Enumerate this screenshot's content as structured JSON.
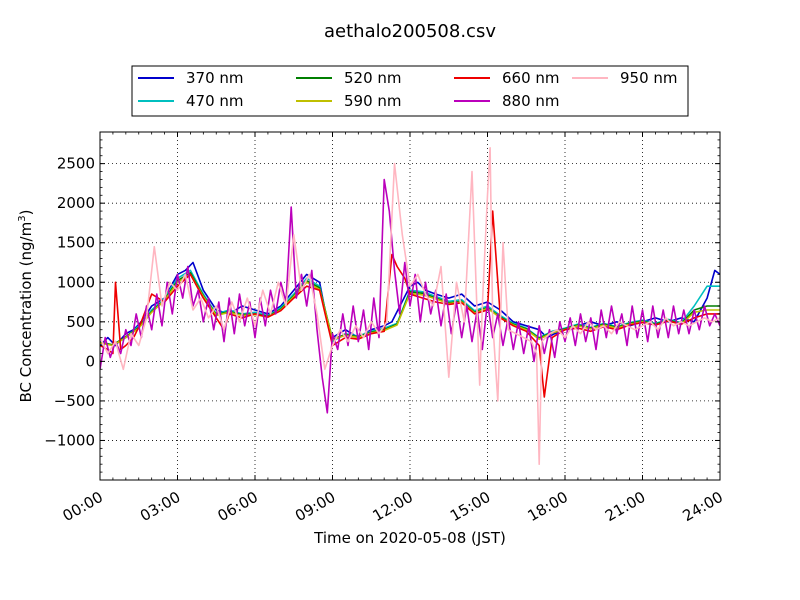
{
  "chart_data": {
    "type": "line",
    "title": "aethalo200508.csv",
    "xlabel": "Time on 2020-05-08 (JST)",
    "ylabel_main": "BC Concentration (ng/m",
    "ylabel_sup": "3",
    "ylabel_tail": ")",
    "x_unit": "hours",
    "xlim": [
      0,
      24
    ],
    "ylim": [
      -1500,
      2900
    ],
    "x_ticks": [
      0,
      3,
      6,
      9,
      12,
      15,
      18,
      21,
      24
    ],
    "x_tick_labels": [
      "00:00",
      "03:00",
      "06:00",
      "09:00",
      "12:00",
      "15:00",
      "18:00",
      "21:00",
      "24:00"
    ],
    "y_ticks": [
      -1000,
      -500,
      0,
      500,
      1000,
      1500,
      2000,
      2500
    ],
    "y_tick_labels": [
      "−1000",
      "−500",
      "0",
      "500",
      "1000",
      "1500",
      "2000",
      "2500"
    ],
    "grid": true,
    "legend_position": "top",
    "series": [
      {
        "name": "370 nm",
        "color": "#0000cc",
        "x": [
          0,
          0.3,
          0.6,
          1,
          1.3,
          1.6,
          2,
          2.5,
          3,
          3.3,
          3.6,
          4,
          4.5,
          5,
          5.5,
          6,
          6.5,
          7,
          7.5,
          8,
          8.5,
          8.8,
          9,
          9.5,
          10,
          10.5,
          11,
          11.3,
          12,
          12.3,
          12.6,
          13,
          13.5,
          14,
          14.5,
          15,
          15.5,
          16,
          16.5,
          17,
          17.3,
          17.6,
          18,
          18.5,
          19,
          19.5,
          20,
          20.5,
          21,
          21.5,
          22,
          22.5,
          23,
          23.5,
          23.8,
          24
        ],
        "y": [
          200,
          300,
          200,
          350,
          400,
          500,
          700,
          800,
          1100,
          1150,
          1250,
          900,
          650,
          600,
          700,
          650,
          600,
          700,
          900,
          1100,
          1000,
          500,
          300,
          400,
          300,
          400,
          450,
          500,
          950,
          1000,
          900,
          850,
          800,
          850,
          700,
          750,
          650,
          500,
          450,
          400,
          300,
          350,
          400,
          450,
          500,
          450,
          500,
          450,
          500,
          550,
          500,
          550,
          500,
          800,
          1150,
          1100
        ]
      },
      {
        "name": "470 nm",
        "color": "#00bfbf",
        "x": [
          0,
          0.5,
          1,
          1.5,
          2,
          2.5,
          3,
          3.5,
          4,
          4.5,
          5,
          5.5,
          6,
          6.5,
          7,
          7.5,
          8,
          8.5,
          9,
          9.5,
          10,
          10.5,
          11,
          11.5,
          12,
          12.5,
          13,
          13.5,
          14,
          14.5,
          15,
          15.5,
          16,
          16.5,
          17,
          17.5,
          18,
          18.5,
          19,
          19.5,
          20,
          20.5,
          21,
          21.5,
          22,
          22.5,
          23,
          23.5,
          24
        ],
        "y": [
          250,
          200,
          300,
          450,
          650,
          800,
          1050,
          1150,
          850,
          600,
          650,
          600,
          620,
          580,
          680,
          850,
          1050,
          950,
          250,
          350,
          320,
          380,
          420,
          480,
          900,
          880,
          820,
          760,
          780,
          640,
          700,
          580,
          480,
          420,
          300,
          380,
          420,
          470,
          430,
          480,
          440,
          490,
          520,
          480,
          530,
          490,
          700,
          950,
          950
        ]
      },
      {
        "name": "520 nm",
        "color": "#007f00",
        "x": [
          0,
          0.5,
          1,
          1.5,
          2,
          2.5,
          3,
          3.5,
          4,
          4.5,
          5,
          5.5,
          6,
          6.5,
          7,
          7.5,
          8,
          8.5,
          9,
          9.5,
          10,
          10.5,
          11,
          11.5,
          12,
          12.5,
          13,
          13.5,
          14,
          14.5,
          15,
          15.5,
          16,
          16.5,
          17,
          17.5,
          18,
          18.5,
          19,
          19.5,
          20,
          20.5,
          21,
          21.5,
          22,
          22.5,
          23,
          23.5,
          24
        ],
        "y": [
          240,
          210,
          310,
          430,
          630,
          780,
          1020,
          1120,
          830,
          590,
          630,
          590,
          600,
          570,
          660,
          830,
          1020,
          930,
          280,
          340,
          310,
          370,
          400,
          470,
          880,
          860,
          800,
          740,
          760,
          620,
          680,
          560,
          470,
          410,
          290,
          370,
          410,
          460,
          420,
          470,
          430,
          480,
          510,
          470,
          520,
          480,
          650,
          700,
          700
        ]
      },
      {
        "name": "590 nm",
        "color": "#bfbf00",
        "x": [
          0,
          0.5,
          1,
          1.5,
          2,
          2.5,
          3,
          3.5,
          4,
          4.5,
          5,
          5.5,
          6,
          6.5,
          7,
          7.5,
          8,
          8.5,
          9,
          9.5,
          10,
          10.5,
          11,
          11.5,
          12,
          12.5,
          13,
          13.5,
          14,
          14.5,
          15,
          15.5,
          16,
          16.5,
          17,
          17.5,
          18,
          18.5,
          19,
          19.5,
          20,
          20.5,
          21,
          21.5,
          22,
          22.5,
          23,
          23.5,
          24
        ],
        "y": [
          230,
          200,
          300,
          420,
          620,
          770,
          1000,
          1100,
          820,
          580,
          620,
          580,
          590,
          560,
          650,
          820,
          1000,
          910,
          270,
          330,
          300,
          360,
          390,
          460,
          860,
          840,
          790,
          730,
          750,
          610,
          670,
          550,
          460,
          400,
          280,
          360,
          400,
          450,
          410,
          460,
          420,
          470,
          500,
          460,
          510,
          470,
          620,
          650,
          650
        ]
      },
      {
        "name": "660 nm",
        "color": "#ee0000",
        "x": [
          0,
          0.3,
          0.5,
          0.6,
          0.8,
          1.0,
          1.3,
          1.6,
          2,
          2.5,
          3,
          3.5,
          4,
          4.5,
          4.8,
          5,
          5.5,
          6,
          6.5,
          7,
          7.5,
          8,
          8.5,
          9,
          9.5,
          10,
          10.5,
          11,
          11.3,
          11.5,
          11.8,
          12,
          12.5,
          13,
          13.5,
          14,
          14.5,
          15,
          15.2,
          15.5,
          16,
          16.5,
          17,
          17.2,
          17.5,
          18,
          18.5,
          19,
          19.5,
          20,
          20.5,
          21,
          21.5,
          22,
          22.5,
          23,
          23.5,
          24
        ],
        "y": [
          200,
          150,
          100,
          1000,
          150,
          200,
          300,
          500,
          850,
          750,
          950,
          1100,
          800,
          550,
          400,
          600,
          550,
          600,
          560,
          640,
          800,
          950,
          900,
          200,
          300,
          280,
          350,
          380,
          1350,
          1200,
          1050,
          850,
          800,
          750,
          720,
          740,
          600,
          650,
          1900,
          550,
          450,
          380,
          200,
          -450,
          300,
          400,
          420,
          380,
          440,
          400,
          460,
          490,
          460,
          510,
          470,
          550,
          600,
          600
        ]
      },
      {
        "name": "880 nm",
        "color": "#bb00bb",
        "x": [
          0,
          0.2,
          0.4,
          0.6,
          0.8,
          1.0,
          1.2,
          1.4,
          1.6,
          1.8,
          2.0,
          2.2,
          2.4,
          2.6,
          2.8,
          3.0,
          3.2,
          3.4,
          3.6,
          3.8,
          4.0,
          4.2,
          4.4,
          4.6,
          4.8,
          5.0,
          5.2,
          5.4,
          5.6,
          5.8,
          6.0,
          6.2,
          6.4,
          6.6,
          6.8,
          7.0,
          7.2,
          7.4,
          7.6,
          7.8,
          8.0,
          8.2,
          8.4,
          8.6,
          8.8,
          9.0,
          9.2,
          9.4,
          9.6,
          9.8,
          10.0,
          10.2,
          10.4,
          10.6,
          10.8,
          11.0,
          11.2,
          11.4,
          11.6,
          11.8,
          12.0,
          12.2,
          12.4,
          12.6,
          12.8,
          13.0,
          13.2,
          13.4,
          13.6,
          13.8,
          14.0,
          14.2,
          14.4,
          14.6,
          14.8,
          15.0,
          15.2,
          15.4,
          15.6,
          15.8,
          16.0,
          16.2,
          16.4,
          16.6,
          16.8,
          17.0,
          17.2,
          17.4,
          17.6,
          17.8,
          18.0,
          18.2,
          18.4,
          18.6,
          18.8,
          19.0,
          19.2,
          19.4,
          19.6,
          19.8,
          20.0,
          20.2,
          20.4,
          20.6,
          20.8,
          21.0,
          21.2,
          21.4,
          21.6,
          21.8,
          22.0,
          22.2,
          22.4,
          22.6,
          22.8,
          23.0,
          23.2,
          23.4,
          23.6,
          23.8,
          24.0
        ],
        "y": [
          -100,
          300,
          50,
          250,
          100,
          400,
          200,
          600,
          300,
          700,
          400,
          850,
          450,
          1000,
          600,
          1100,
          800,
          1200,
          700,
          900,
          500,
          800,
          400,
          750,
          250,
          800,
          350,
          850,
          450,
          750,
          300,
          800,
          450,
          900,
          600,
          1000,
          750,
          1950,
          800,
          1100,
          700,
          1150,
          400,
          -200,
          -650,
          350,
          150,
          600,
          200,
          700,
          250,
          650,
          150,
          800,
          300,
          2300,
          1900,
          1150,
          600,
          1250,
          700,
          1100,
          500,
          1000,
          600,
          900,
          450,
          850,
          350,
          750,
          300,
          700,
          250,
          650,
          150,
          750,
          300,
          600,
          200,
          550,
          150,
          500,
          100,
          450,
          0,
          450,
          100,
          400,
          50,
          500,
          250,
          550,
          200,
          600,
          250,
          550,
          150,
          650,
          300,
          700,
          350,
          600,
          200,
          700,
          300,
          650,
          250,
          700,
          300,
          650,
          300,
          700,
          350,
          650,
          350,
          650,
          400,
          700,
          450,
          600,
          450
        ]
      },
      {
        "name": "950 nm",
        "color": "#ffb6c1",
        "x": [
          0,
          0.3,
          0.6,
          0.9,
          1.2,
          1.5,
          1.8,
          2.1,
          2.4,
          2.7,
          3.0,
          3.3,
          3.6,
          3.9,
          4.2,
          4.5,
          4.8,
          5.1,
          5.4,
          5.7,
          6.0,
          6.3,
          6.6,
          6.9,
          7.2,
          7.5,
          7.8,
          8.1,
          8.4,
          8.7,
          9.0,
          9.3,
          9.6,
          9.9,
          10.2,
          10.5,
          10.8,
          11.1,
          11.4,
          11.7,
          12.0,
          12.3,
          12.6,
          12.9,
          13.2,
          13.5,
          13.8,
          14.1,
          14.4,
          14.7,
          14.8,
          15.0,
          15.1,
          15.2,
          15.4,
          15.6,
          15.8,
          16.1,
          16.4,
          16.7,
          16.9,
          17.0,
          17.1,
          17.4,
          17.7,
          18.0,
          18.3,
          18.6,
          18.9,
          19.2,
          19.5,
          19.8,
          20.1,
          20.4,
          20.7,
          21.0,
          21.3,
          21.6,
          21.9,
          22.2,
          22.5,
          22.8,
          23.1,
          23.4,
          23.7,
          24.0
        ],
        "y": [
          300,
          100,
          250,
          -100,
          350,
          200,
          550,
          1450,
          700,
          1000,
          900,
          1100,
          650,
          800,
          550,
          700,
          400,
          750,
          500,
          800,
          450,
          900,
          600,
          1000,
          700,
          1600,
          900,
          1100,
          600,
          -100,
          200,
          400,
          250,
          450,
          300,
          500,
          350,
          500,
          2500,
          1600,
          950,
          1100,
          850,
          700,
          1200,
          -200,
          1000,
          500,
          2400,
          -300,
          700,
          2100,
          2700,
          500,
          -500,
          1500,
          400,
          350,
          300,
          250,
          100,
          -1300,
          250,
          350,
          400,
          300,
          450,
          350,
          500,
          400,
          450,
          350,
          500,
          450,
          400,
          450,
          500,
          400,
          550,
          450,
          500,
          450,
          500,
          550,
          500,
          550
        ]
      }
    ]
  }
}
